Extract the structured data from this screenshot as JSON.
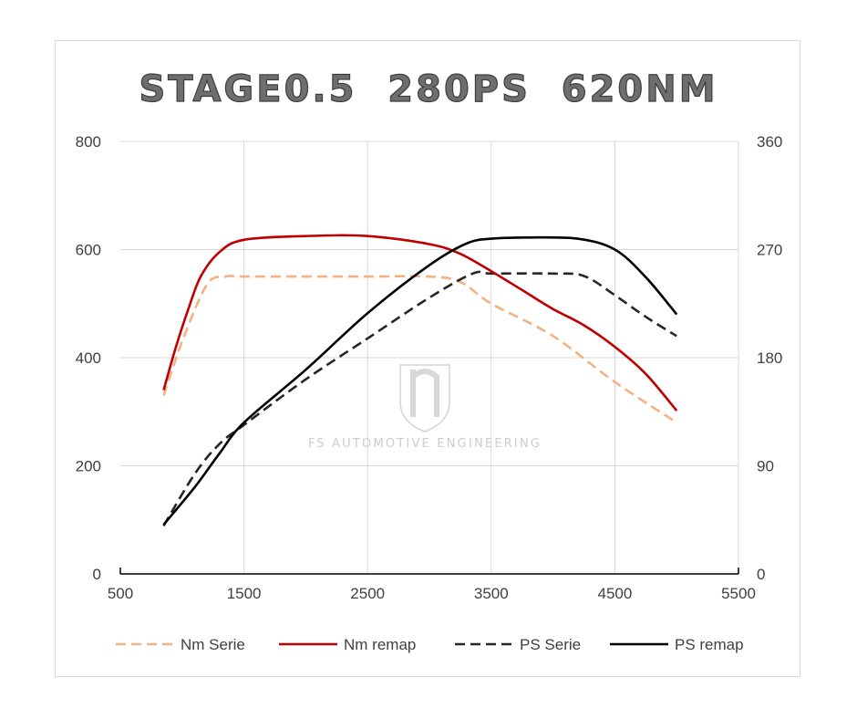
{
  "chart_data": {
    "type": "line",
    "title": "STAGE0.5  280PS  620NM",
    "watermark": "FS AUTOMOTIVE ENGINEERING",
    "x": {
      "min": 500,
      "max": 5500,
      "ticks": [
        500,
        1500,
        2500,
        3500,
        4500,
        5500
      ],
      "tick_labels": [
        "500",
        "1500",
        "2500",
        "3500",
        "4500",
        "5500"
      ]
    },
    "y_left": {
      "min": 0,
      "max": 800,
      "ticks": [
        0,
        200,
        400,
        600,
        800
      ],
      "tick_labels": [
        "0",
        "200",
        "400",
        "600",
        "800"
      ]
    },
    "y_right": {
      "min": 0,
      "max": 360,
      "ticks": [
        0,
        90,
        180,
        270,
        360
      ],
      "tick_labels": [
        "0",
        "90",
        "180",
        "270",
        "360"
      ]
    },
    "grid": "vertical and horizontal",
    "legend_position": "bottom",
    "series": [
      {
        "name": "Nm Serie",
        "axis": "left",
        "color": "#f4b183",
        "dash": true,
        "points": [
          [
            850,
            330
          ],
          [
            1000,
            430
          ],
          [
            1200,
            535
          ],
          [
            1350,
            550
          ],
          [
            1500,
            550
          ],
          [
            2000,
            550
          ],
          [
            2500,
            550
          ],
          [
            3000,
            550
          ],
          [
            3250,
            540
          ],
          [
            3500,
            500
          ],
          [
            4000,
            440
          ],
          [
            4500,
            355
          ],
          [
            5000,
            280
          ]
        ]
      },
      {
        "name": "Nm remap",
        "axis": "left",
        "color": "#c00000",
        "dash": false,
        "points": [
          [
            850,
            340
          ],
          [
            950,
            420
          ],
          [
            1050,
            490
          ],
          [
            1150,
            550
          ],
          [
            1300,
            595
          ],
          [
            1500,
            618
          ],
          [
            2000,
            625
          ],
          [
            2500,
            625
          ],
          [
            3000,
            610
          ],
          [
            3250,
            592
          ],
          [
            3500,
            560
          ],
          [
            3750,
            525
          ],
          [
            4000,
            490
          ],
          [
            4250,
            460
          ],
          [
            4500,
            420
          ],
          [
            4750,
            370
          ],
          [
            5000,
            302
          ]
        ]
      },
      {
        "name": "PS Serie",
        "axis": "right",
        "color": "#262626",
        "dash": true,
        "points": [
          [
            850,
            40
          ],
          [
            1100,
            83
          ],
          [
            1300,
            108
          ],
          [
            1500,
            124
          ],
          [
            2000,
            162
          ],
          [
            2500,
            196
          ],
          [
            3000,
            230
          ],
          [
            3350,
            250
          ],
          [
            3500,
            250
          ],
          [
            4000,
            250
          ],
          [
            4250,
            248
          ],
          [
            4500,
            232
          ],
          [
            4750,
            214
          ],
          [
            5000,
            198
          ]
        ]
      },
      {
        "name": "PS remap",
        "axis": "right",
        "color": "#000000",
        "dash": false,
        "points": [
          [
            850,
            41
          ],
          [
            1100,
            72
          ],
          [
            1300,
            100
          ],
          [
            1500,
            126
          ],
          [
            2000,
            170
          ],
          [
            2500,
            217
          ],
          [
            3000,
            257
          ],
          [
            3300,
            275
          ],
          [
            3500,
            279
          ],
          [
            3800,
            280
          ],
          [
            4200,
            279
          ],
          [
            4500,
            270
          ],
          [
            4750,
            247
          ],
          [
            5000,
            216
          ]
        ]
      }
    ]
  }
}
